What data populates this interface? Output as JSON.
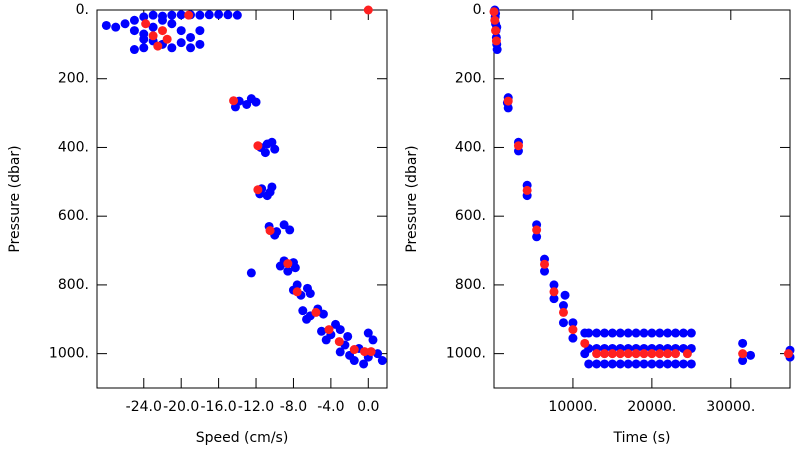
{
  "chart_data": [
    {
      "type": "scatter",
      "xlabel": "Speed (cm/s)",
      "ylabel": "Pressure (dbar)",
      "xlim": [
        -29,
        2
      ],
      "ylim": [
        1100,
        0
      ],
      "xticks": [
        {
          "value": -24,
          "label": "-24.0"
        },
        {
          "value": -20,
          "label": "-20.0"
        },
        {
          "value": -16,
          "label": "-16.0"
        },
        {
          "value": -12,
          "label": "-12.0"
        },
        {
          "value": -8,
          "label": "-8.0"
        },
        {
          "value": -4,
          "label": "-4.0"
        },
        {
          "value": 0,
          "label": "0.0"
        }
      ],
      "yticks": [
        {
          "value": 0,
          "label": "0."
        },
        {
          "value": 200,
          "label": "200."
        },
        {
          "value": 400,
          "label": "400."
        },
        {
          "value": 600,
          "label": "600."
        },
        {
          "value": 800,
          "label": "800."
        },
        {
          "value": 1000,
          "label": "1000."
        }
      ],
      "series": [
        {
          "color": "#0000ff",
          "x": [
            -28,
            -27,
            -26,
            -25,
            -24,
            -23,
            -22,
            -21,
            -20,
            -19,
            -18,
            -17,
            -16,
            -15,
            -14,
            -25,
            -24,
            -23,
            -22,
            -21,
            -20,
            -19,
            -18,
            -24,
            -25,
            -23,
            -21,
            -20,
            -19,
            -22,
            -24,
            -18,
            -13.8,
            -13,
            -12.5,
            -12,
            -14.2,
            -11.5,
            -10.8,
            -10,
            -11,
            -10.3,
            -11.4,
            -10.8,
            -10.3,
            -11.6,
            -10.5,
            -10.6,
            -9.8,
            -9,
            -8.4,
            -10,
            -9.4,
            -8.6,
            -8,
            -9,
            -12.5,
            -7.8,
            -8,
            -7.2,
            -6.5,
            -7.6,
            -6.2,
            -7,
            -6.2,
            -5.4,
            -4.8,
            -6.6,
            -5,
            -4,
            -3,
            -2.2,
            -4.5,
            -3.5,
            -3,
            -2,
            -1,
            0,
            1,
            1.5,
            -0.5,
            -1.5,
            0.5,
            -2.5,
            0
          ],
          "y": [
            45,
            50,
            40,
            30,
            20,
            15,
            18,
            15,
            14,
            14,
            15,
            14,
            13,
            14,
            15,
            60,
            70,
            90,
            100,
            110,
            95,
            80,
            100,
            110,
            115,
            50,
            40,
            60,
            110,
            30,
            85,
            60,
            265,
            275,
            258,
            268,
            282,
            400,
            390,
            405,
            415,
            385,
            520,
            540,
            515,
            535,
            530,
            630,
            645,
            625,
            640,
            655,
            745,
            760,
            735,
            730,
            765,
            750,
            815,
            830,
            810,
            800,
            825,
            875,
            890,
            870,
            885,
            900,
            935,
            945,
            930,
            950,
            960,
            915,
            995,
            1005,
            985,
            1010,
            1000,
            1020,
            1030,
            1020,
            960,
            975,
            940
          ]
        },
        {
          "color": "#ff2020",
          "x": [
            -23.8,
            -22,
            -23,
            -21.5,
            -22.5,
            -19.2,
            0,
            -14.4,
            -11.8,
            -11.8,
            -10.5,
            -8.6,
            -7.6,
            -5.6,
            -4.2,
            -3.1,
            -1.5,
            -0.4,
            0.3
          ],
          "y": [
            40,
            60,
            75,
            85,
            105,
            15,
            0,
            264,
            395,
            523,
            642,
            738,
            820,
            880,
            930,
            965,
            988,
            994,
            994
          ]
        }
      ]
    },
    {
      "type": "scatter",
      "xlabel": "Time (s)",
      "ylabel": "Pressure (dbar)",
      "xlim": [
        0,
        37500
      ],
      "ylim": [
        1100,
        0
      ],
      "xticks": [
        {
          "value": 10000,
          "label": "10000."
        },
        {
          "value": 20000,
          "label": "20000."
        },
        {
          "value": 30000,
          "label": "30000."
        }
      ],
      "yticks": [
        {
          "value": 0,
          "label": "0."
        },
        {
          "value": 200,
          "label": "200."
        },
        {
          "value": 400,
          "label": "400."
        },
        {
          "value": 600,
          "label": "600."
        },
        {
          "value": 800,
          "label": "800."
        },
        {
          "value": 1000,
          "label": "1000."
        }
      ],
      "series": [
        {
          "color": "#0000ff",
          "x": [
            100,
            150,
            200,
            250,
            300,
            350,
            400,
            200,
            350,
            1800,
            1800,
            1700,
            3100,
            3100,
            4200,
            4200,
            5400,
            5400,
            6400,
            6400,
            7600,
            7600,
            8800,
            8800,
            9000,
            10000,
            10000,
            11500,
            11500,
            12000,
            12000,
            12000,
            13000,
            13000,
            13000,
            14000,
            14000,
            14000,
            15000,
            15000,
            15000,
            16000,
            16000,
            16000,
            17000,
            17000,
            17000,
            18000,
            18000,
            18000,
            19000,
            19000,
            19000,
            20000,
            20000,
            20000,
            21000,
            21000,
            21000,
            22000,
            22000,
            22000,
            23000,
            23000,
            23000,
            24000,
            24000,
            24000,
            25000,
            25000,
            25000,
            31500,
            31500,
            32500,
            37500,
            37500
          ],
          "y": [
            0,
            20,
            40,
            60,
            80,
            100,
            115,
            10,
            50,
            255,
            285,
            270,
            385,
            410,
            510,
            540,
            625,
            660,
            725,
            760,
            800,
            840,
            860,
            910,
            830,
            910,
            955,
            940,
            1000,
            940,
            985,
            1030,
            940,
            985,
            1030,
            940,
            985,
            1030,
            940,
            985,
            1030,
            940,
            985,
            1030,
            940,
            985,
            1030,
            940,
            985,
            1030,
            940,
            985,
            1030,
            940,
            985,
            1030,
            940,
            985,
            1030,
            940,
            985,
            1030,
            940,
            985,
            1030,
            940,
            985,
            1030,
            940,
            985,
            1030,
            970,
            1020,
            1005,
            990,
            1010
          ]
        },
        {
          "color": "#ff2020",
          "x": [
            0,
            100,
            200,
            300,
            1800,
            3100,
            4200,
            5400,
            6400,
            7600,
            8800,
            10000,
            11500,
            13000,
            14000,
            15000,
            16000,
            17000,
            18000,
            19000,
            20000,
            21000,
            22000,
            23000,
            24500,
            31500,
            37300
          ],
          "y": [
            5,
            30,
            60,
            90,
            265,
            395,
            525,
            640,
            740,
            820,
            880,
            930,
            970,
            1000,
            1000,
            1000,
            1000,
            1000,
            1000,
            1000,
            1000,
            1000,
            1000,
            1000,
            1000,
            1000,
            1000
          ]
        }
      ]
    }
  ]
}
